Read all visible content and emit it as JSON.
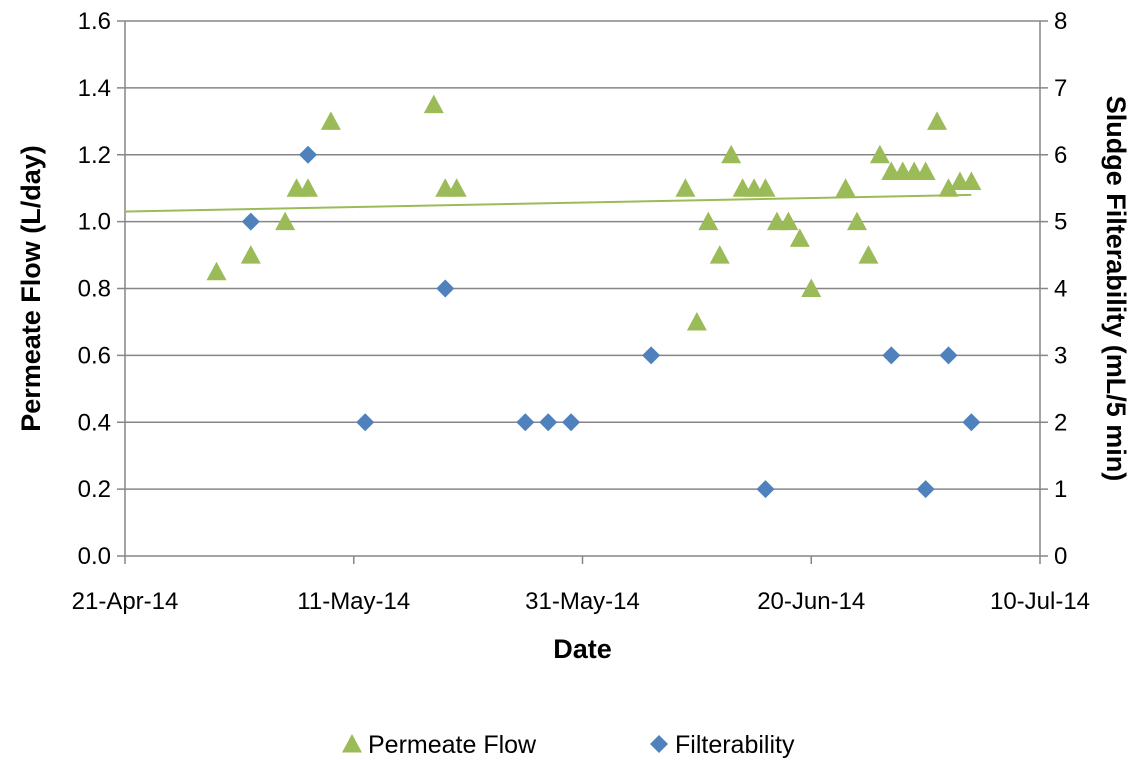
{
  "chart_data": {
    "type": "scatter",
    "xlabel": "Date",
    "ylabel_left": "Permeate Flow (L/day)",
    "ylabel_right": "Sludge Filterability (mL/5 min)",
    "x_range": [
      "2014-04-21",
      "2014-07-10"
    ],
    "x_ticks": [
      {
        "date": "2014-04-21",
        "label": "21-Apr-14"
      },
      {
        "date": "2014-05-11",
        "label": "11-May-14"
      },
      {
        "date": "2014-05-31",
        "label": "31-May-14"
      },
      {
        "date": "2014-06-20",
        "label": "20-Jun-14"
      },
      {
        "date": "2014-07-10",
        "label": "10-Jul-14"
      }
    ],
    "ylim_left": [
      0,
      1.6
    ],
    "yticks_left": [
      "0.0",
      "0.2",
      "0.4",
      "0.6",
      "0.8",
      "1.0",
      "1.2",
      "1.4",
      "1.6"
    ],
    "ylim_right": [
      0,
      8
    ],
    "yticks_right": [
      "0",
      "1",
      "2",
      "3",
      "4",
      "5",
      "6",
      "7",
      "8"
    ],
    "grid": "horizontal",
    "legend_position": "bottom",
    "series": [
      {
        "name": "Permeate Flow",
        "axis": "left",
        "marker": "triangle",
        "color": "#9BBB59",
        "points": [
          {
            "x": "2014-04-29",
            "y": 0.85
          },
          {
            "x": "2014-05-02",
            "y": 0.9
          },
          {
            "x": "2014-05-05",
            "y": 1.0
          },
          {
            "x": "2014-05-06",
            "y": 1.1
          },
          {
            "x": "2014-05-07",
            "y": 1.1
          },
          {
            "x": "2014-05-09",
            "y": 1.3
          },
          {
            "x": "2014-05-18",
            "y": 1.35
          },
          {
            "x": "2014-05-19",
            "y": 1.1
          },
          {
            "x": "2014-05-20",
            "y": 1.1
          },
          {
            "x": "2014-06-09",
            "y": 1.1
          },
          {
            "x": "2014-06-10",
            "y": 0.7
          },
          {
            "x": "2014-06-11",
            "y": 1.0
          },
          {
            "x": "2014-06-12",
            "y": 0.9
          },
          {
            "x": "2014-06-13",
            "y": 1.2
          },
          {
            "x": "2014-06-14",
            "y": 1.1
          },
          {
            "x": "2014-06-15",
            "y": 1.1
          },
          {
            "x": "2014-06-16",
            "y": 1.1
          },
          {
            "x": "2014-06-17",
            "y": 1.0
          },
          {
            "x": "2014-06-18",
            "y": 1.0
          },
          {
            "x": "2014-06-19",
            "y": 0.95
          },
          {
            "x": "2014-06-20",
            "y": 0.8
          },
          {
            "x": "2014-06-23",
            "y": 1.1
          },
          {
            "x": "2014-06-24",
            "y": 1.0
          },
          {
            "x": "2014-06-25",
            "y": 0.9
          },
          {
            "x": "2014-06-26",
            "y": 1.2
          },
          {
            "x": "2014-06-27",
            "y": 1.15
          },
          {
            "x": "2014-06-28",
            "y": 1.15
          },
          {
            "x": "2014-06-29",
            "y": 1.15
          },
          {
            "x": "2014-06-30",
            "y": 1.15
          },
          {
            "x": "2014-07-01",
            "y": 1.3
          },
          {
            "x": "2014-07-02",
            "y": 1.1
          },
          {
            "x": "2014-07-03",
            "y": 1.12
          },
          {
            "x": "2014-07-04",
            "y": 1.12
          }
        ],
        "trendline": {
          "type": "linear",
          "from": {
            "x": "2014-04-21",
            "y": 1.03
          },
          "to": {
            "x": "2014-07-04",
            "y": 1.08
          }
        }
      },
      {
        "name": "Filterability",
        "axis": "right",
        "marker": "diamond",
        "color": "#4F81BD",
        "points": [
          {
            "x": "2014-05-02",
            "y": 5
          },
          {
            "x": "2014-05-07",
            "y": 6
          },
          {
            "x": "2014-05-12",
            "y": 2
          },
          {
            "x": "2014-05-19",
            "y": 4
          },
          {
            "x": "2014-05-26",
            "y": 2
          },
          {
            "x": "2014-05-28",
            "y": 2
          },
          {
            "x": "2014-05-30",
            "y": 2
          },
          {
            "x": "2014-06-06",
            "y": 3
          },
          {
            "x": "2014-06-16",
            "y": 1
          },
          {
            "x": "2014-06-27",
            "y": 3
          },
          {
            "x": "2014-06-30",
            "y": 1
          },
          {
            "x": "2014-07-02",
            "y": 3
          },
          {
            "x": "2014-07-04",
            "y": 2
          }
        ]
      }
    ]
  },
  "legend": {
    "items": [
      {
        "label": "Permeate Flow",
        "marker": "triangle",
        "color": "#9BBB59"
      },
      {
        "label": "Filterability",
        "marker": "diamond",
        "color": "#4F81BD"
      }
    ]
  }
}
